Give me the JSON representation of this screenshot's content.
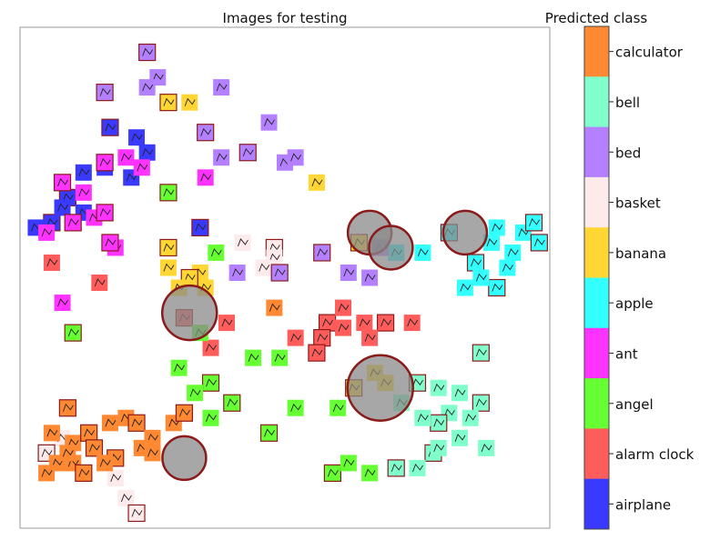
{
  "chart_data": {
    "type": "scatter",
    "title": "Images for testing",
    "xlabel": "",
    "ylabel": "",
    "x_range": [
      0,
      1
    ],
    "y_range": [
      0,
      1
    ],
    "grid": false,
    "legend": {
      "title": "Predicted class",
      "placement": "right",
      "colorbar": true
    },
    "classes": [
      {
        "name": "airplane",
        "color": "#3a3aff"
      },
      {
        "name": "alarm clock",
        "color": "#ff5c5c"
      },
      {
        "name": "angel",
        "color": "#66ff33"
      },
      {
        "name": "ant",
        "color": "#ff33ff"
      },
      {
        "name": "apple",
        "color": "#33ffff"
      },
      {
        "name": "banana",
        "color": "#ffd633"
      },
      {
        "name": "basket",
        "color": "#fdeaea"
      },
      {
        "name": "bed",
        "color": "#b380ff"
      },
      {
        "name": "bell",
        "color": "#80ffcc"
      },
      {
        "name": "calculator",
        "color": "#ff8833"
      }
    ],
    "series": [
      {
        "class": "airplane",
        "points": [
          [
            0.17,
            0.8
          ],
          [
            0.22,
            0.78
          ],
          [
            0.12,
            0.71
          ],
          [
            0.09,
            0.66
          ],
          [
            0.16,
            0.72
          ],
          [
            0.21,
            0.7
          ],
          [
            0.06,
            0.61
          ],
          [
            0.03,
            0.6
          ],
          [
            0.12,
            0.63
          ],
          [
            0.34,
            0.6
          ],
          [
            0.08,
            0.64
          ],
          [
            0.24,
            0.75
          ]
        ]
      },
      {
        "class": "alarm clock",
        "points": [
          [
            0.58,
            0.41
          ],
          [
            0.61,
            0.4
          ],
          [
            0.65,
            0.41
          ],
          [
            0.69,
            0.41
          ],
          [
            0.74,
            0.41
          ],
          [
            0.61,
            0.44
          ],
          [
            0.57,
            0.38
          ],
          [
            0.52,
            0.38
          ],
          [
            0.66,
            0.38
          ],
          [
            0.56,
            0.35
          ],
          [
            0.39,
            0.41
          ],
          [
            0.36,
            0.36
          ],
          [
            0.31,
            0.42
          ],
          [
            0.06,
            0.53
          ],
          [
            0.15,
            0.49
          ]
        ]
      },
      {
        "class": "angel",
        "points": [
          [
            0.1,
            0.39
          ],
          [
            0.34,
            0.39
          ],
          [
            0.3,
            0.32
          ],
          [
            0.36,
            0.29
          ],
          [
            0.44,
            0.34
          ],
          [
            0.36,
            0.22
          ],
          [
            0.47,
            0.19
          ],
          [
            0.52,
            0.24
          ],
          [
            0.6,
            0.24
          ],
          [
            0.59,
            0.11
          ],
          [
            0.66,
            0.11
          ],
          [
            0.62,
            0.13
          ],
          [
            0.28,
            0.67
          ],
          [
            0.37,
            0.55
          ],
          [
            0.49,
            0.34
          ],
          [
            0.4,
            0.25
          ],
          [
            0.33,
            0.27
          ]
        ]
      },
      {
        "class": "ant",
        "points": [
          [
            0.16,
            0.73
          ],
          [
            0.2,
            0.74
          ],
          [
            0.23,
            0.72
          ],
          [
            0.08,
            0.69
          ],
          [
            0.12,
            0.67
          ],
          [
            0.14,
            0.62
          ],
          [
            0.16,
            0.63
          ],
          [
            0.18,
            0.56
          ],
          [
            0.08,
            0.45
          ],
          [
            0.1,
            0.61
          ],
          [
            0.35,
            0.7
          ],
          [
            0.05,
            0.59
          ],
          [
            0.17,
            0.57
          ]
        ]
      },
      {
        "class": "apple",
        "points": [
          [
            0.81,
            0.59
          ],
          [
            0.9,
            0.6
          ],
          [
            0.95,
            0.59
          ],
          [
            0.97,
            0.61
          ],
          [
            0.89,
            0.57
          ],
          [
            0.93,
            0.55
          ],
          [
            0.86,
            0.53
          ],
          [
            0.92,
            0.52
          ],
          [
            0.84,
            0.48
          ],
          [
            0.9,
            0.48
          ],
          [
            0.76,
            0.55
          ],
          [
            0.71,
            0.55
          ],
          [
            0.98,
            0.57
          ],
          [
            0.87,
            0.5
          ]
        ]
      },
      {
        "class": "banana",
        "points": [
          [
            0.28,
            0.85
          ],
          [
            0.32,
            0.85
          ],
          [
            0.56,
            0.69
          ],
          [
            0.28,
            0.56
          ],
          [
            0.34,
            0.51
          ],
          [
            0.35,
            0.48
          ],
          [
            0.32,
            0.5
          ],
          [
            0.28,
            0.52
          ],
          [
            0.3,
            0.48
          ],
          [
            0.64,
            0.57
          ],
          [
            0.67,
            0.31
          ],
          [
            0.69,
            0.29
          ],
          [
            0.63,
            0.28
          ]
        ]
      },
      {
        "class": "basket",
        "points": [
          [
            0.48,
            0.56
          ],
          [
            0.48,
            0.54
          ],
          [
            0.08,
            0.18
          ],
          [
            0.05,
            0.15
          ],
          [
            0.18,
            0.1
          ],
          [
            0.2,
            0.06
          ],
          [
            0.22,
            0.03
          ],
          [
            0.42,
            0.57
          ],
          [
            0.46,
            0.52
          ]
        ]
      },
      {
        "class": "bed",
        "points": [
          [
            0.24,
            0.95
          ],
          [
            0.26,
            0.9
          ],
          [
            0.24,
            0.88
          ],
          [
            0.16,
            0.87
          ],
          [
            0.38,
            0.88
          ],
          [
            0.47,
            0.81
          ],
          [
            0.43,
            0.75
          ],
          [
            0.5,
            0.73
          ],
          [
            0.52,
            0.74
          ],
          [
            0.35,
            0.79
          ],
          [
            0.38,
            0.74
          ],
          [
            0.68,
            0.56
          ],
          [
            0.57,
            0.55
          ],
          [
            0.66,
            0.5
          ],
          [
            0.41,
            0.51
          ],
          [
            0.49,
            0.51
          ],
          [
            0.62,
            0.51
          ]
        ]
      },
      {
        "class": "bell",
        "points": [
          [
            0.75,
            0.29
          ],
          [
            0.79,
            0.28
          ],
          [
            0.83,
            0.27
          ],
          [
            0.87,
            0.25
          ],
          [
            0.81,
            0.23
          ],
          [
            0.85,
            0.22
          ],
          [
            0.79,
            0.21
          ],
          [
            0.83,
            0.18
          ],
          [
            0.88,
            0.16
          ],
          [
            0.78,
            0.15
          ],
          [
            0.72,
            0.25
          ],
          [
            0.76,
            0.22
          ],
          [
            0.71,
            0.12
          ],
          [
            0.75,
            0.12
          ],
          [
            0.79,
            0.16
          ],
          [
            0.87,
            0.35
          ]
        ]
      },
      {
        "class": "calculator",
        "points": [
          [
            0.09,
            0.24
          ],
          [
            0.06,
            0.19
          ],
          [
            0.1,
            0.17
          ],
          [
            0.13,
            0.19
          ],
          [
            0.17,
            0.21
          ],
          [
            0.2,
            0.22
          ],
          [
            0.22,
            0.21
          ],
          [
            0.25,
            0.18
          ],
          [
            0.29,
            0.21
          ],
          [
            0.14,
            0.16
          ],
          [
            0.07,
            0.13
          ],
          [
            0.1,
            0.13
          ],
          [
            0.18,
            0.14
          ],
          [
            0.23,
            0.16
          ],
          [
            0.16,
            0.13
          ],
          [
            0.12,
            0.11
          ],
          [
            0.05,
            0.11
          ],
          [
            0.09,
            0.15
          ],
          [
            0.31,
            0.23
          ],
          [
            0.48,
            0.44
          ],
          [
            0.25,
            0.15
          ]
        ]
      }
    ],
    "highlighted": [
      [
        0.32,
        0.43
      ],
      [
        0.66,
        0.59
      ],
      [
        0.7,
        0.56
      ],
      [
        0.84,
        0.59
      ],
      [
        0.68,
        0.28
      ],
      [
        0.31,
        0.14
      ]
    ],
    "colorbar_ticks": [
      "calculator",
      "bell",
      "bed",
      "basket",
      "banana",
      "apple",
      "ant",
      "angel",
      "alarm clock",
      "airplane"
    ]
  }
}
